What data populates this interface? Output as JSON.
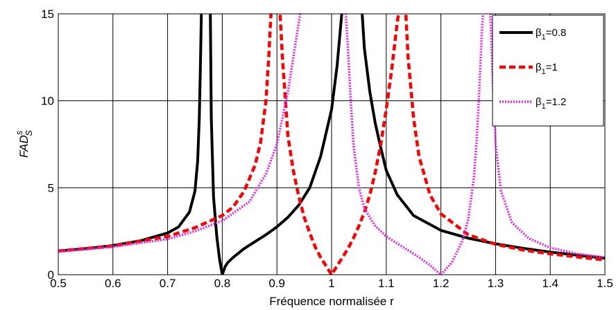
{
  "chart_data": {
    "type": "line",
    "title": "",
    "xlabel": "Fréquence normalisée r",
    "ylabel_main": "FAD",
    "ylabel_sup": "s",
    "ylabel_sub": "S",
    "xlim": [
      0.5,
      1.5
    ],
    "ylim": [
      0,
      15
    ],
    "xticks": [
      "0.5",
      "0.6",
      "0.7",
      "0.8",
      "0.9",
      "1",
      "1.1",
      "1.2",
      "1.3",
      "1.4",
      "1.5"
    ],
    "xtick_values": [
      0.5,
      0.6,
      0.7,
      0.8,
      0.9,
      1.0,
      1.1,
      1.2,
      1.3,
      1.4,
      1.5
    ],
    "yticks": [
      "0",
      "5",
      "10",
      "15"
    ],
    "ytick_values": [
      0,
      5,
      10,
      15
    ],
    "grid": true,
    "legend_position": "top-right",
    "series": [
      {
        "legend_prefix": "β",
        "legend_sub": "1",
        "legend_suffix": "=0.8",
        "color": "#000000",
        "style": "solid",
        "segments": [
          [
            [
              0.5,
              1.36
            ],
            [
              0.55,
              1.5
            ],
            [
              0.6,
              1.68
            ],
            [
              0.65,
              1.95
            ],
            [
              0.7,
              2.4
            ],
            [
              0.72,
              2.75
            ],
            [
              0.74,
              3.6
            ],
            [
              0.75,
              4.8
            ],
            [
              0.755,
              6.5
            ],
            [
              0.758,
              9
            ],
            [
              0.76,
              12
            ],
            [
              0.762,
              15.5
            ]
          ],
          [
            [
              0.778,
              15.5
            ],
            [
              0.78,
              9
            ],
            [
              0.784,
              4.5
            ],
            [
              0.79,
              2.2
            ],
            [
              0.795,
              0.9
            ],
            [
              0.8,
              0
            ],
            [
              0.805,
              0.45
            ],
            [
              0.81,
              0.7
            ],
            [
              0.82,
              1.0
            ],
            [
              0.84,
              1.5
            ],
            [
              0.86,
              1.9
            ],
            [
              0.88,
              2.3
            ],
            [
              0.9,
              2.75
            ],
            [
              0.92,
              3.3
            ],
            [
              0.94,
              4.0
            ],
            [
              0.96,
              5.0
            ],
            [
              0.98,
              6.8
            ],
            [
              1.0,
              9.5
            ],
            [
              1.01,
              12
            ],
            [
              1.02,
              15.5
            ]
          ],
          [
            [
              1.055,
              15.5
            ],
            [
              1.06,
              13
            ],
            [
              1.07,
              10.5
            ],
            [
              1.08,
              8.7
            ],
            [
              1.09,
              7.3
            ],
            [
              1.1,
              6.0
            ],
            [
              1.12,
              4.6
            ],
            [
              1.15,
              3.4
            ],
            [
              1.2,
              2.55
            ],
            [
              1.25,
              2.1
            ],
            [
              1.3,
              1.78
            ],
            [
              1.35,
              1.52
            ],
            [
              1.4,
              1.3
            ],
            [
              1.45,
              1.12
            ],
            [
              1.5,
              0.95
            ]
          ]
        ]
      },
      {
        "legend_prefix": "β",
        "legend_sub": "1",
        "legend_suffix": "=1",
        "color": "#ff0000",
        "style": "dashed",
        "segments": [
          [
            [
              0.5,
              1.36
            ],
            [
              0.6,
              1.65
            ],
            [
              0.7,
              2.2
            ],
            [
              0.75,
              2.7
            ],
            [
              0.8,
              3.4
            ],
            [
              0.82,
              3.9
            ],
            [
              0.84,
              4.8
            ],
            [
              0.86,
              6.3
            ],
            [
              0.87,
              7.6
            ],
            [
              0.88,
              10
            ],
            [
              0.885,
              12.5
            ],
            [
              0.89,
              15.5
            ]
          ],
          [
            [
              0.905,
              15.5
            ],
            [
              0.91,
              12.5
            ],
            [
              0.92,
              8
            ],
            [
              0.93,
              6.0
            ],
            [
              0.94,
              4.5
            ],
            [
              0.95,
              3.3
            ],
            [
              0.96,
              2.4
            ],
            [
              0.97,
              1.6
            ],
            [
              0.98,
              1.0
            ],
            [
              0.99,
              0.5
            ],
            [
              1.0,
              0
            ],
            [
              1.01,
              0.5
            ],
            [
              1.02,
              1.0
            ],
            [
              1.03,
              1.5
            ],
            [
              1.04,
              2.1
            ],
            [
              1.05,
              2.8
            ],
            [
              1.06,
              3.6
            ],
            [
              1.07,
              4.6
            ],
            [
              1.08,
              5.9
            ],
            [
              1.09,
              7.5
            ],
            [
              1.1,
              9.5
            ],
            [
              1.11,
              11.8
            ],
            [
              1.12,
              14.5
            ],
            [
              1.125,
              15.5
            ]
          ],
          [
            [
              1.135,
              15.5
            ],
            [
              1.14,
              12.5
            ],
            [
              1.15,
              9
            ],
            [
              1.16,
              6.8
            ],
            [
              1.18,
              4.6
            ],
            [
              1.2,
              3.5
            ],
            [
              1.25,
              2.3
            ],
            [
              1.3,
              1.75
            ],
            [
              1.35,
              1.42
            ],
            [
              1.4,
              1.2
            ],
            [
              1.45,
              1.02
            ],
            [
              1.5,
              0.85
            ]
          ]
        ]
      },
      {
        "legend_prefix": "β",
        "legend_sub": "1",
        "legend_suffix": "=1.2",
        "color": "#ee22ee",
        "style": "dotted",
        "segments": [
          [
            [
              0.5,
              1.32
            ],
            [
              0.6,
              1.6
            ],
            [
              0.7,
              2.05
            ],
            [
              0.75,
              2.5
            ],
            [
              0.8,
              3.1
            ],
            [
              0.85,
              4.2
            ],
            [
              0.88,
              5.8
            ],
            [
              0.9,
              7.5
            ],
            [
              0.92,
              10.5
            ],
            [
              0.935,
              13.5
            ],
            [
              0.945,
              15.5
            ]
          ],
          [
            [
              1.025,
              15.5
            ],
            [
              1.03,
              13
            ],
            [
              1.035,
              10
            ],
            [
              1.04,
              7.5
            ],
            [
              1.05,
              5.0
            ],
            [
              1.06,
              3.8
            ],
            [
              1.08,
              2.8
            ],
            [
              1.1,
              2.2
            ],
            [
              1.12,
              1.8
            ],
            [
              1.14,
              1.4
            ],
            [
              1.16,
              1.0
            ],
            [
              1.18,
              0.55
            ],
            [
              1.2,
              0
            ],
            [
              1.22,
              0.7
            ],
            [
              1.24,
              2.0
            ],
            [
              1.25,
              3.2
            ],
            [
              1.26,
              5.5
            ],
            [
              1.265,
              7.5
            ],
            [
              1.27,
              10.5
            ],
            [
              1.275,
              14
            ],
            [
              1.278,
              15.5
            ]
          ],
          [
            [
              1.29,
              15.5
            ],
            [
              1.295,
              11
            ],
            [
              1.3,
              7.5
            ],
            [
              1.31,
              4.8
            ],
            [
              1.33,
              3.0
            ],
            [
              1.36,
              2.1
            ],
            [
              1.4,
              1.55
            ],
            [
              1.45,
              1.2
            ],
            [
              1.5,
              1.0
            ]
          ]
        ]
      }
    ]
  }
}
